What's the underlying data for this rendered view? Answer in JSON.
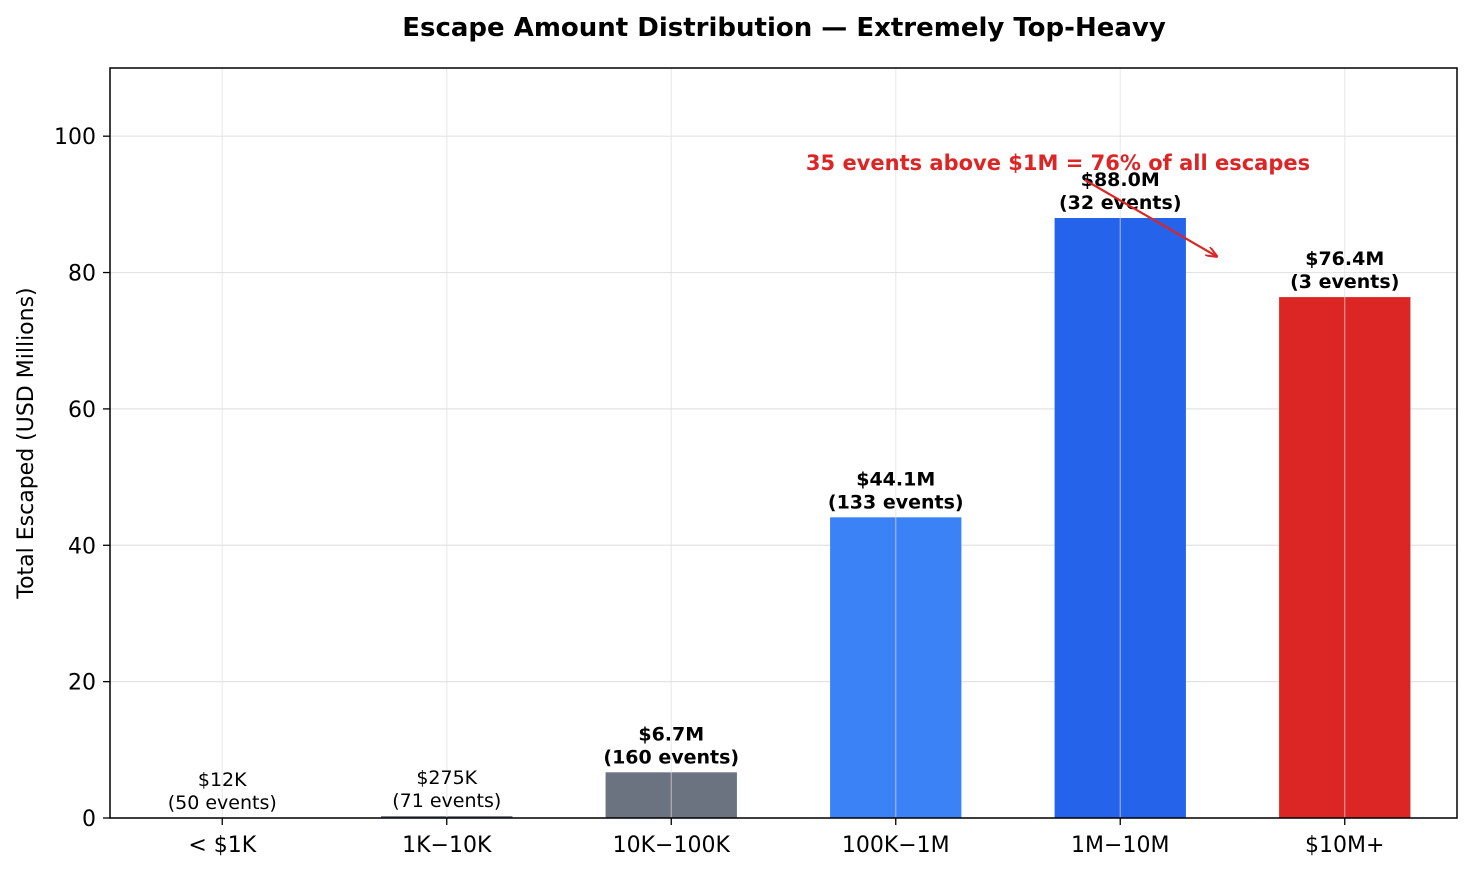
{
  "chart_data": {
    "type": "bar",
    "title": "Escape Amount Distribution — Extremely Top-Heavy",
    "xlabel": "",
    "ylabel": "Total Escaped (USD Millions)",
    "ylim": [
      0,
      110
    ],
    "yticks": [
      0,
      20,
      40,
      60,
      80,
      100
    ],
    "grid": true,
    "categories": [
      "< $1K",
      "1K−10K",
      "10K−100K",
      "100K−1M",
      "1M−10M",
      "$10M+"
    ],
    "values": [
      0.012,
      0.275,
      6.7,
      44.1,
      88.0,
      76.4
    ],
    "value_labels": [
      "$12K",
      "$275K",
      "$6.7M",
      "$44.1M",
      "$88.0M",
      "$76.4M"
    ],
    "event_labels": [
      "(50 events)",
      "(71 events)",
      "(160 events)",
      "(133 events)",
      "(32 events)",
      "(3 events)"
    ],
    "label_bold": [
      false,
      false,
      true,
      true,
      true,
      true
    ],
    "colors": [
      "#6b7280",
      "#6b7280",
      "#6b7280",
      "#3b82f6",
      "#2563eb",
      "#dc2626"
    ],
    "annotation": {
      "text": "35 events above $1M = 76% of all escapes",
      "color": "#dc2626"
    }
  }
}
